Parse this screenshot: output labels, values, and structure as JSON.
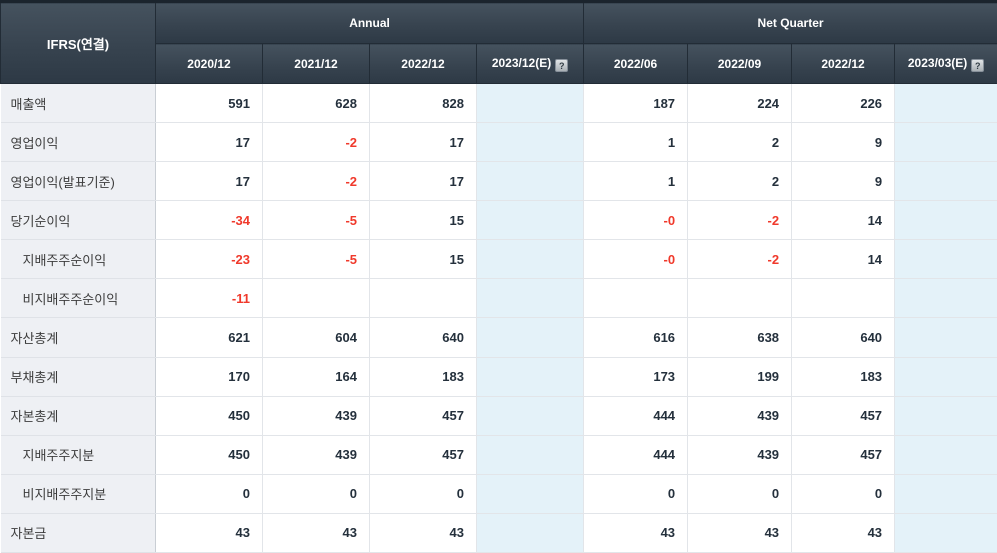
{
  "header": {
    "corner_label": "IFRS(연결)",
    "groups": [
      {
        "label": "Annual"
      },
      {
        "label": "Net Quarter"
      }
    ],
    "columns": [
      {
        "label": "2020/12",
        "estimate": false
      },
      {
        "label": "2021/12",
        "estimate": false
      },
      {
        "label": "2022/12",
        "estimate": false
      },
      {
        "label": "2023/12(E)",
        "estimate": true
      },
      {
        "label": "2022/06",
        "estimate": false
      },
      {
        "label": "2022/09",
        "estimate": false
      },
      {
        "label": "2022/12",
        "estimate": false
      },
      {
        "label": "2023/03(E)",
        "estimate": true
      }
    ],
    "help_icon_glyph": "?"
  },
  "colors": {
    "header_background": "#37434f",
    "negative_value": "#f0392b",
    "estimate_column_background": "#e4f2f9",
    "row_label_background": "#eef0f4"
  },
  "rows": [
    {
      "label": "매출액",
      "indent": false,
      "values": [
        "591",
        "628",
        "828",
        "",
        "187",
        "224",
        "226",
        ""
      ]
    },
    {
      "label": "영업이익",
      "indent": false,
      "values": [
        "17",
        "-2",
        "17",
        "",
        "1",
        "2",
        "9",
        ""
      ]
    },
    {
      "label": "영업이익(발표기준)",
      "indent": false,
      "values": [
        "17",
        "-2",
        "17",
        "",
        "1",
        "2",
        "9",
        ""
      ]
    },
    {
      "label": "당기순이익",
      "indent": false,
      "values": [
        "-34",
        "-5",
        "15",
        "",
        "-0",
        "-2",
        "14",
        ""
      ]
    },
    {
      "label": "지배주주순이익",
      "indent": true,
      "values": [
        "-23",
        "-5",
        "15",
        "",
        "-0",
        "-2",
        "14",
        ""
      ]
    },
    {
      "label": "비지배주주순이익",
      "indent": true,
      "values": [
        "-11",
        "",
        "",
        "",
        "",
        "",
        "",
        ""
      ]
    },
    {
      "label": "자산총계",
      "indent": false,
      "values": [
        "621",
        "604",
        "640",
        "",
        "616",
        "638",
        "640",
        ""
      ]
    },
    {
      "label": "부채총계",
      "indent": false,
      "values": [
        "170",
        "164",
        "183",
        "",
        "173",
        "199",
        "183",
        ""
      ]
    },
    {
      "label": "자본총계",
      "indent": false,
      "values": [
        "450",
        "439",
        "457",
        "",
        "444",
        "439",
        "457",
        ""
      ]
    },
    {
      "label": "지배주주지분",
      "indent": true,
      "values": [
        "450",
        "439",
        "457",
        "",
        "444",
        "439",
        "457",
        ""
      ]
    },
    {
      "label": "비지배주주지분",
      "indent": true,
      "values": [
        "0",
        "0",
        "0",
        "",
        "0",
        "0",
        "0",
        ""
      ]
    },
    {
      "label": "자본금",
      "indent": false,
      "values": [
        "43",
        "43",
        "43",
        "",
        "43",
        "43",
        "43",
        ""
      ]
    }
  ]
}
